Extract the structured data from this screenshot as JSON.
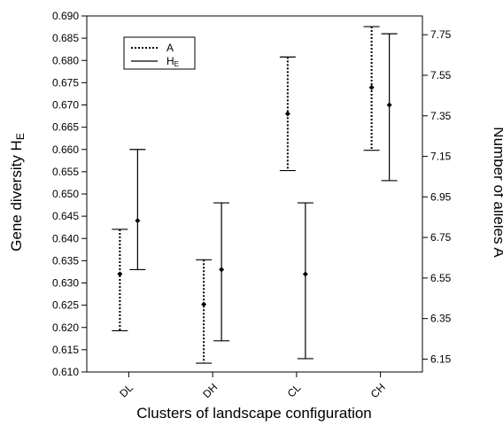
{
  "chart_data": {
    "type": "errorbar",
    "categories": [
      "DL",
      "DH",
      "CL",
      "CH"
    ],
    "xlabel": "Clusters of landscape configuration",
    "ylabel_left": {
      "text": "Gene diversity H",
      "sub": "E"
    },
    "ylabel_right": "Number of alleles A",
    "left_axis": {
      "range": [
        0.61,
        0.69
      ],
      "ticks": [
        "0.610",
        "0.615",
        "0.620",
        "0.625",
        "0.630",
        "0.635",
        "0.640",
        "0.645",
        "0.650",
        "0.655",
        "0.660",
        "0.665",
        "0.670",
        "0.675",
        "0.680",
        "0.685",
        "0.690"
      ]
    },
    "right_axis": {
      "range": [
        6.0865,
        7.8426
      ],
      "ticks": [
        "6.15",
        "6.35",
        "6.55",
        "6.75",
        "6.95",
        "7.15",
        "7.35",
        "7.55",
        "7.75"
      ]
    },
    "legend": {
      "position": "top-left",
      "items": [
        {
          "label": "A",
          "style": "dotted"
        },
        {
          "label": "H",
          "sub": "E",
          "style": "solid"
        }
      ]
    },
    "series": [
      {
        "name": "A",
        "style": "dotted",
        "axis": "right",
        "points": [
          {
            "category": "DL",
            "mean": 6.57,
            "low": 6.29,
            "high": 6.79
          },
          {
            "category": "DH",
            "mean": 6.42,
            "low": 6.13,
            "high": 6.64
          },
          {
            "category": "CL",
            "mean": 7.36,
            "low": 7.08,
            "high": 7.64
          },
          {
            "category": "CH",
            "mean": 7.49,
            "low": 7.18,
            "high": 7.79
          }
        ]
      },
      {
        "name": "HE",
        "style": "solid",
        "axis": "left",
        "points": [
          {
            "category": "DL",
            "mean": 0.644,
            "low": 0.633,
            "high": 0.66
          },
          {
            "category": "DH",
            "mean": 0.633,
            "low": 0.617,
            "high": 0.648
          },
          {
            "category": "CL",
            "mean": 0.632,
            "low": 0.613,
            "high": 0.648
          },
          {
            "category": "CH",
            "mean": 0.67,
            "low": 0.653,
            "high": 0.686
          }
        ]
      }
    ]
  }
}
